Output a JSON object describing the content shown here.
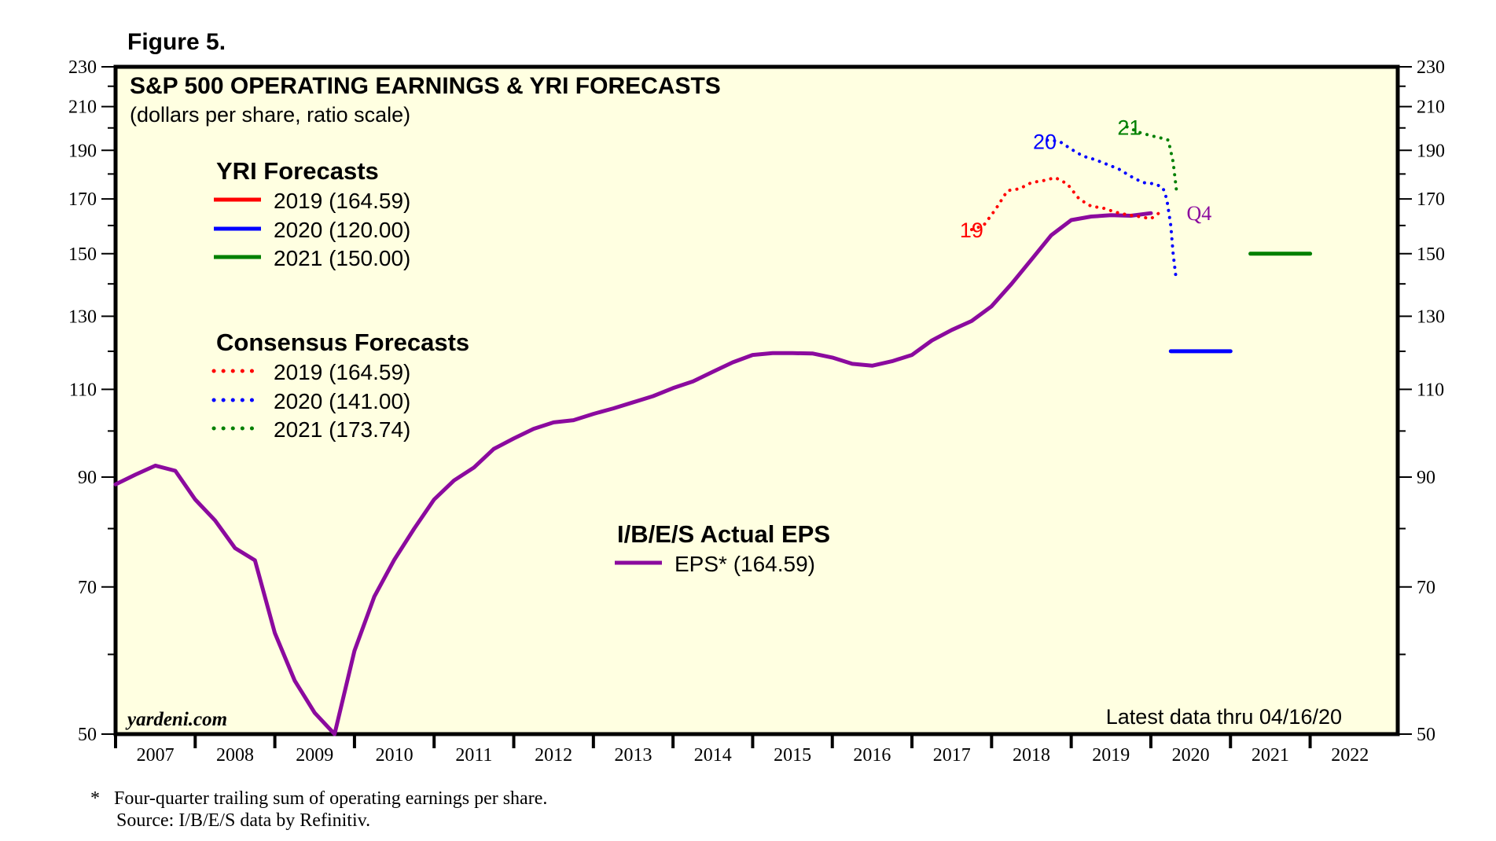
{
  "figure_label": "Figure 5.",
  "source_tag": "yardeni.com",
  "latest_note": "Latest data thru 04/16/20",
  "footnote_star": "*",
  "footnote_text": "Four-quarter trailing sum of operating earnings per share.",
  "source_text": "Source: I/B/E/S data by Refinitiv.",
  "colors": {
    "plot_bg": "#FFFFE1",
    "eps": "#8B0A9E",
    "red": "#FF0000",
    "blue": "#0000FF",
    "green": "#008000",
    "q4": "#8B0A9E"
  },
  "chart_data": {
    "type": "line",
    "title": "S&P 500 OPERATING EARNINGS & YRI FORECASTS",
    "subtitle": "(dollars per share, ratio scale)",
    "y_scale": "log",
    "ylim": [
      50,
      230
    ],
    "xlim": [
      2006.5,
      2022.6
    ],
    "y_ticks": [
      50,
      70,
      90,
      110,
      130,
      150,
      170,
      190,
      210,
      230
    ],
    "x_ticks": [
      "2007",
      "2008",
      "2009",
      "2010",
      "2011",
      "2012",
      "2013",
      "2014",
      "2015",
      "2016",
      "2017",
      "2018",
      "2019",
      "2020",
      "2021",
      "2022"
    ],
    "legend_groups": [
      {
        "heading": "YRI Forecasts",
        "items": [
          {
            "label": "2019 (164.59)",
            "color": "red",
            "style": "solid"
          },
          {
            "label": "2020 (120.00)",
            "color": "blue",
            "style": "solid"
          },
          {
            "label": "2021 (150.00)",
            "color": "green",
            "style": "solid"
          }
        ]
      },
      {
        "heading": "Consensus Forecasts",
        "items": [
          {
            "label": "2019 (164.59)",
            "color": "red",
            "style": "dotted"
          },
          {
            "label": "2020 (141.00)",
            "color": "blue",
            "style": "dotted"
          },
          {
            "label": "2021 (173.74)",
            "color": "green",
            "style": "dotted"
          }
        ]
      }
    ],
    "eps_legend": {
      "heading": "I/B/E/S Actual EPS",
      "label": "EPS* (164.59)"
    },
    "series": [
      {
        "name": "EPS* (164.59)",
        "style": "solid",
        "color": "eps",
        "x": [
          2006.5,
          2006.75,
          2007.0,
          2007.25,
          2007.5,
          2007.75,
          2008.0,
          2008.25,
          2008.5,
          2008.75,
          2009.0,
          2009.25,
          2009.5,
          2009.75,
          2010.0,
          2010.25,
          2010.5,
          2010.75,
          2011.0,
          2011.25,
          2011.5,
          2011.75,
          2012.0,
          2012.25,
          2012.5,
          2012.75,
          2013.0,
          2013.25,
          2013.5,
          2013.75,
          2014.0,
          2014.25,
          2014.5,
          2014.75,
          2015.0,
          2015.25,
          2015.5,
          2015.75,
          2016.0,
          2016.25,
          2016.5,
          2016.75,
          2017.0,
          2017.25,
          2017.5,
          2017.75,
          2018.0,
          2018.25,
          2018.5,
          2018.75,
          2019.0,
          2019.25,
          2019.5
        ],
        "y": [
          88.5,
          90.5,
          92.4,
          91.3,
          85.5,
          81.5,
          76.5,
          74.4,
          63.0,
          56.5,
          52.5,
          50.0,
          60.5,
          68.5,
          74.5,
          80.0,
          85.5,
          89.3,
          92.0,
          96.0,
          98.3,
          100.5,
          102.0,
          102.5,
          104.0,
          105.3,
          106.8,
          108.3,
          110.3,
          112.0,
          114.5,
          117.0,
          119.0,
          119.5,
          119.5,
          119.4,
          118.3,
          116.6,
          116.1,
          117.3,
          119.0,
          123.0,
          126.0,
          128.6,
          133.0,
          140.0,
          148.0,
          156.5,
          162.0,
          163.3,
          163.8,
          163.6,
          164.59
        ]
      },
      {
        "name": "2019 (164.59)",
        "style": "dotted",
        "color": "red",
        "x": [
          2017.25,
          2017.4,
          2017.55,
          2017.7,
          2017.85,
          2018.0,
          2018.15,
          2018.3,
          2018.45,
          2018.6,
          2018.75,
          2018.9,
          2019.05,
          2019.2,
          2019.35,
          2019.5,
          2019.6
        ],
        "y": [
          158.5,
          160.0,
          166.0,
          173.3,
          174.0,
          176.5,
          177.3,
          178.5,
          176.0,
          170.0,
          167.2,
          166.5,
          165.0,
          164.0,
          163.3,
          162.5,
          164.59
        ]
      },
      {
        "name": "2020 (141.00)",
        "style": "dotted",
        "color": "blue",
        "x": [
          2018.2,
          2018.35,
          2018.5,
          2018.65,
          2018.8,
          2018.95,
          2019.1,
          2019.25,
          2019.4,
          2019.55,
          2019.65,
          2019.7,
          2019.75,
          2019.78,
          2019.82
        ],
        "y": [
          194.5,
          194.0,
          190.5,
          187.5,
          186.0,
          184.0,
          182.0,
          179.0,
          176.5,
          176.0,
          174.5,
          170.0,
          160.0,
          150.0,
          141.0
        ]
      },
      {
        "name": "2021 (173.74)",
        "style": "dotted",
        "color": "green",
        "x": [
          2019.2,
          2019.35,
          2019.5,
          2019.62,
          2019.72,
          2019.78,
          2019.82
        ],
        "y": [
          200.5,
          198.0,
          196.5,
          195.5,
          194.5,
          185.0,
          173.74
        ]
      },
      {
        "name": "2020 (120.00)",
        "style": "solid",
        "color": "blue",
        "x": [
          2019.75,
          2020.5
        ],
        "y": [
          120.0,
          120.0
        ]
      },
      {
        "name": "2021 (150.00)",
        "style": "solid",
        "color": "green",
        "x": [
          2020.75,
          2021.5
        ],
        "y": [
          150.0,
          150.0
        ]
      }
    ],
    "annotations": [
      {
        "text": "19",
        "x": 2017.1,
        "y": 158.5,
        "color": "red"
      },
      {
        "text": "20",
        "x": 2018.02,
        "y": 194.0,
        "color": "blue"
      },
      {
        "text": "21",
        "x": 2019.08,
        "y": 200.5,
        "color": "green"
      },
      {
        "text": "Q4",
        "x": 2019.95,
        "y": 165.0,
        "color": "q4"
      }
    ]
  }
}
